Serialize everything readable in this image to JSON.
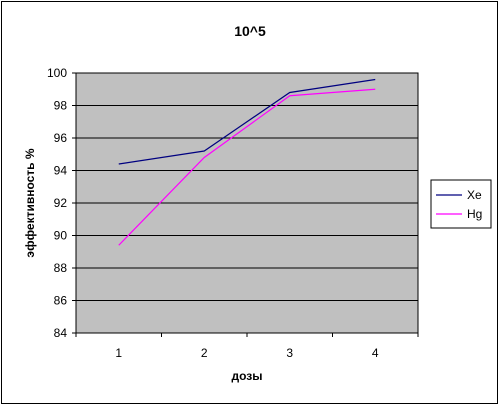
{
  "chart_data": {
    "type": "line",
    "title": "10^5",
    "xlabel": "дозы",
    "ylabel": "эффективность %",
    "categories": [
      "1",
      "2",
      "3",
      "4"
    ],
    "ylim": [
      84,
      100
    ],
    "yticks": [
      84,
      86,
      88,
      90,
      92,
      94,
      96,
      98,
      100
    ],
    "grid": true,
    "legend_position": "right",
    "series": [
      {
        "name": "Xe",
        "color": "#000080",
        "values": [
          94.4,
          95.2,
          98.8,
          99.6
        ]
      },
      {
        "name": "Hg",
        "color": "#ff00ff",
        "values": [
          89.4,
          94.8,
          98.6,
          99.0
        ]
      }
    ],
    "plot_background": "#c0c0c0"
  }
}
